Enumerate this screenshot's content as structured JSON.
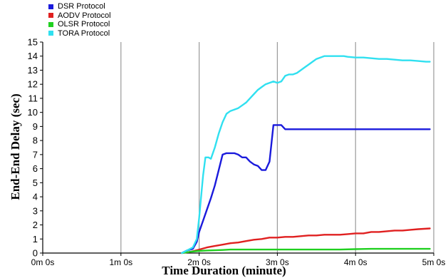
{
  "chart_data": {
    "type": "line",
    "xlabel": "Time Duration (minute)",
    "ylabel": "End-End Delay (sec)",
    "xlim": [
      0,
      5
    ],
    "ylim": [
      0,
      15
    ],
    "x_ticks": [
      {
        "value": 0,
        "label": "0m 0s"
      },
      {
        "value": 1,
        "label": "1m 0s"
      },
      {
        "value": 2,
        "label": "2m 0s"
      },
      {
        "value": 3,
        "label": "3m 0s"
      },
      {
        "value": 4,
        "label": "4m 0s"
      },
      {
        "value": 5,
        "label": "5m 0s"
      }
    ],
    "y_ticks": [
      0,
      1,
      2,
      3,
      4,
      5,
      6,
      7,
      8,
      9,
      10,
      11,
      12,
      13,
      14,
      15
    ],
    "grid": {
      "vertical": true,
      "horizontal": false
    },
    "legend_position": "top-left, above plot",
    "series": [
      {
        "name": "DSR Protocol",
        "color": "#1a1adc",
        "x": [
          1.78,
          1.85,
          1.92,
          1.97,
          2.0,
          2.05,
          2.1,
          2.15,
          2.2,
          2.25,
          2.3,
          2.35,
          2.4,
          2.45,
          2.5,
          2.55,
          2.6,
          2.65,
          2.7,
          2.75,
          2.8,
          2.85,
          2.9,
          2.95,
          3.0,
          3.05,
          3.1,
          3.2,
          3.5,
          4.0,
          4.5,
          4.95
        ],
        "y": [
          0,
          0.2,
          0.3,
          0.8,
          1.5,
          2.3,
          3.1,
          3.9,
          4.8,
          5.9,
          7.0,
          7.1,
          7.1,
          7.1,
          7.0,
          6.8,
          6.8,
          6.5,
          6.3,
          6.2,
          5.9,
          5.9,
          6.5,
          9.1,
          9.1,
          9.1,
          8.8,
          8.8,
          8.8,
          8.8,
          8.8,
          8.8
        ]
      },
      {
        "name": "AODV Protocol",
        "color": "#e02020",
        "x": [
          1.78,
          1.9,
          2.0,
          2.1,
          2.2,
          2.3,
          2.4,
          2.5,
          2.6,
          2.7,
          2.8,
          2.9,
          3.0,
          3.1,
          3.2,
          3.3,
          3.4,
          3.5,
          3.6,
          3.7,
          3.8,
          3.9,
          4.0,
          4.1,
          4.2,
          4.3,
          4.4,
          4.5,
          4.6,
          4.7,
          4.8,
          4.95
        ],
        "y": [
          0,
          0.1,
          0.25,
          0.4,
          0.5,
          0.6,
          0.7,
          0.75,
          0.85,
          0.95,
          1.0,
          1.1,
          1.1,
          1.15,
          1.15,
          1.2,
          1.25,
          1.25,
          1.3,
          1.3,
          1.3,
          1.35,
          1.4,
          1.4,
          1.5,
          1.5,
          1.55,
          1.6,
          1.6,
          1.65,
          1.7,
          1.75
        ]
      },
      {
        "name": "OLSR Protocol",
        "color": "#20d020",
        "x": [
          1.78,
          1.9,
          2.0,
          2.1,
          2.2,
          2.3,
          2.4,
          2.5,
          2.6,
          2.7,
          2.8,
          2.9,
          3.0,
          3.2,
          3.4,
          3.6,
          3.8,
          4.0,
          4.2,
          4.4,
          4.6,
          4.8,
          4.95
        ],
        "y": [
          0,
          0.1,
          0.15,
          0.18,
          0.2,
          0.22,
          0.25,
          0.25,
          0.25,
          0.25,
          0.25,
          0.25,
          0.25,
          0.25,
          0.25,
          0.25,
          0.25,
          0.28,
          0.3,
          0.3,
          0.3,
          0.3,
          0.3
        ]
      },
      {
        "name": "TORA Protocol",
        "color": "#30e0f0",
        "x": [
          1.78,
          1.85,
          1.92,
          1.97,
          2.0,
          2.05,
          2.08,
          2.12,
          2.15,
          2.2,
          2.25,
          2.3,
          2.35,
          2.4,
          2.45,
          2.5,
          2.55,
          2.6,
          2.65,
          2.7,
          2.75,
          2.8,
          2.85,
          2.9,
          2.95,
          3.0,
          3.05,
          3.1,
          3.15,
          3.2,
          3.25,
          3.3,
          3.35,
          3.4,
          3.45,
          3.5,
          3.55,
          3.6,
          3.65,
          3.7,
          3.75,
          3.8,
          3.85,
          3.9,
          4.0,
          4.1,
          4.2,
          4.3,
          4.4,
          4.5,
          4.6,
          4.7,
          4.8,
          4.9,
          4.95
        ],
        "y": [
          0,
          0.2,
          0.4,
          1.0,
          2.5,
          5.5,
          6.8,
          6.8,
          6.7,
          7.5,
          8.5,
          9.3,
          9.9,
          10.1,
          10.2,
          10.3,
          10.5,
          10.7,
          11.0,
          11.3,
          11.6,
          11.8,
          12.0,
          12.1,
          12.2,
          12.1,
          12.2,
          12.6,
          12.7,
          12.7,
          12.8,
          13.0,
          13.2,
          13.4,
          13.6,
          13.8,
          13.9,
          14.0,
          14.0,
          14.0,
          14.0,
          14.0,
          14.0,
          13.95,
          13.9,
          13.9,
          13.85,
          13.8,
          13.8,
          13.75,
          13.7,
          13.7,
          13.65,
          13.6,
          13.6
        ]
      }
    ]
  }
}
